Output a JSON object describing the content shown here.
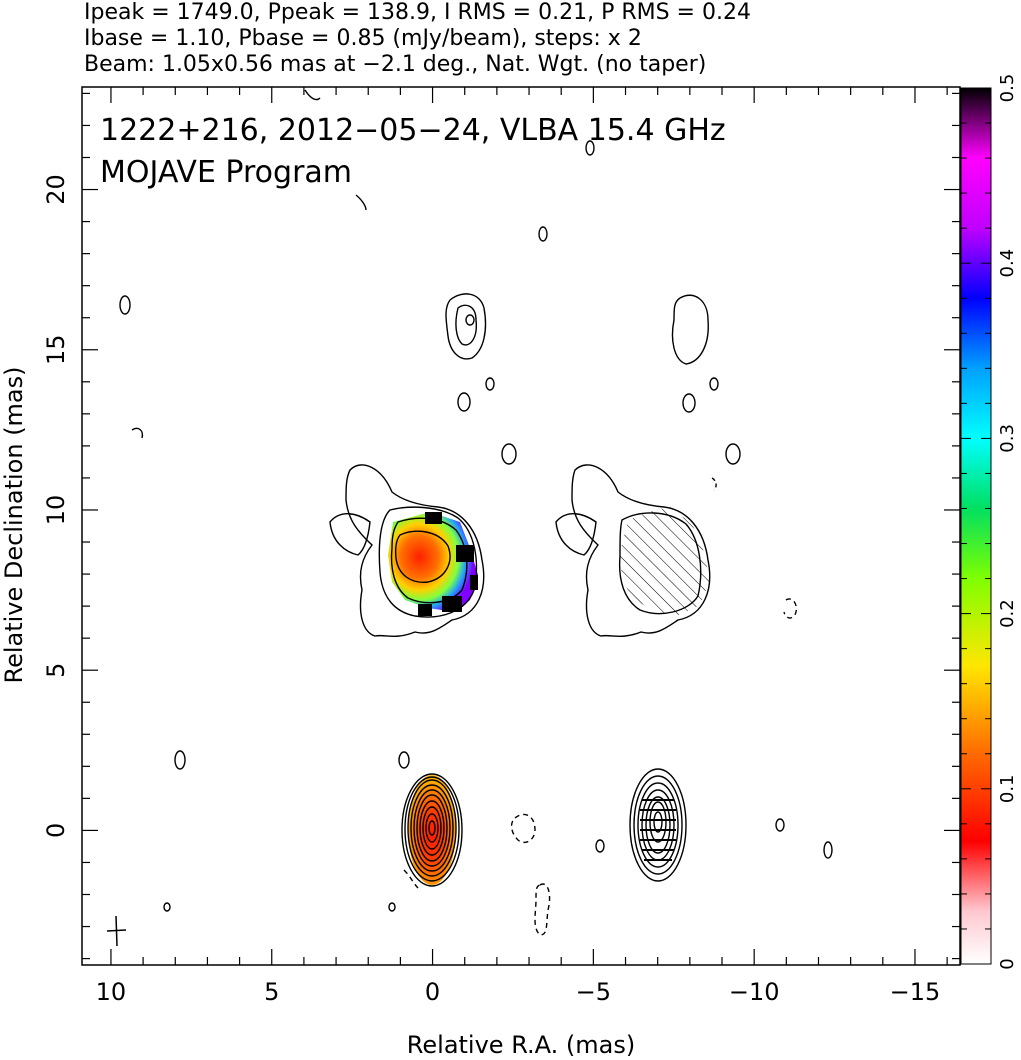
{
  "chart_data": {
    "type": "contour",
    "header_lines": [
      "Ipeak = 1749.0, Ppeak = 138.9, I RMS = 0.21, P RMS = 0.24",
      "Ibase = 1.10, Pbase = 0.85 (mJy/beam), steps: x 2",
      "Beam: 1.05x0.56 mas at −2.1 deg., Nat. Wgt. (no taper)"
    ],
    "annotation_lines": [
      "1222+216, 2012−05−24, VLBA 15.4 GHz",
      "MOJAVE Program"
    ],
    "xlabel": "Relative R.A. (mas)",
    "ylabel": "Relative Declination (mas)",
    "xlim": [
      10.9,
      -16.4
    ],
    "ylim": [
      -4.2,
      23.2
    ],
    "x_ticks": [
      10,
      5,
      0,
      -5,
      -10,
      -15
    ],
    "x_tick_labels": [
      "10",
      "5",
      "0",
      "−5",
      "−10",
      "−15"
    ],
    "y_ticks": [
      0,
      5,
      10,
      15,
      20
    ],
    "y_tick_labels": [
      "0",
      "5",
      "10",
      "15",
      "20"
    ],
    "colorbar": {
      "range": [
        0,
        0.5
      ],
      "ticks": [
        0,
        0.1,
        0.2,
        0.3,
        0.4,
        0.5
      ],
      "tick_labels": [
        "0",
        "0.1",
        "0.2",
        "0.3",
        "0.4",
        "0.5"
      ]
    },
    "left_panel_center_x": 0,
    "right_panel_center_x": -7.2,
    "core": {
      "x": 0,
      "y": 0
    },
    "jet_knot": {
      "x": 0.6,
      "y": 8.3
    },
    "beam": {
      "x": 10,
      "y": -3.2
    }
  }
}
